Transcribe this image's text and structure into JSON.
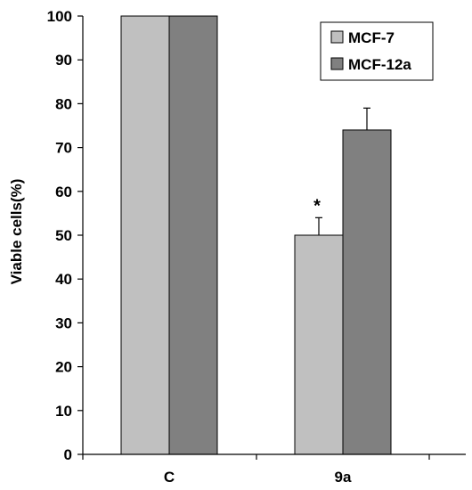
{
  "chart_data": {
    "type": "bar",
    "title": "",
    "xlabel": "",
    "ylabel": "Viable cells(%)",
    "ylim": [
      0,
      100
    ],
    "yticks": [
      0,
      10,
      20,
      30,
      40,
      50,
      60,
      70,
      80,
      90,
      100
    ],
    "grid": false,
    "legend_position": "top-right",
    "categories": [
      "C",
      "9a"
    ],
    "series": [
      {
        "name": "MCF-7",
        "color": "#c0c0c0",
        "values": [
          100,
          50
        ],
        "errors": [
          0,
          4
        ]
      },
      {
        "name": "MCF-12a",
        "color": "#808080",
        "values": [
          100,
          74
        ],
        "errors": [
          0,
          5
        ]
      }
    ],
    "annotations": [
      {
        "text": "*",
        "category": "9a",
        "series": "MCF-7"
      }
    ]
  }
}
